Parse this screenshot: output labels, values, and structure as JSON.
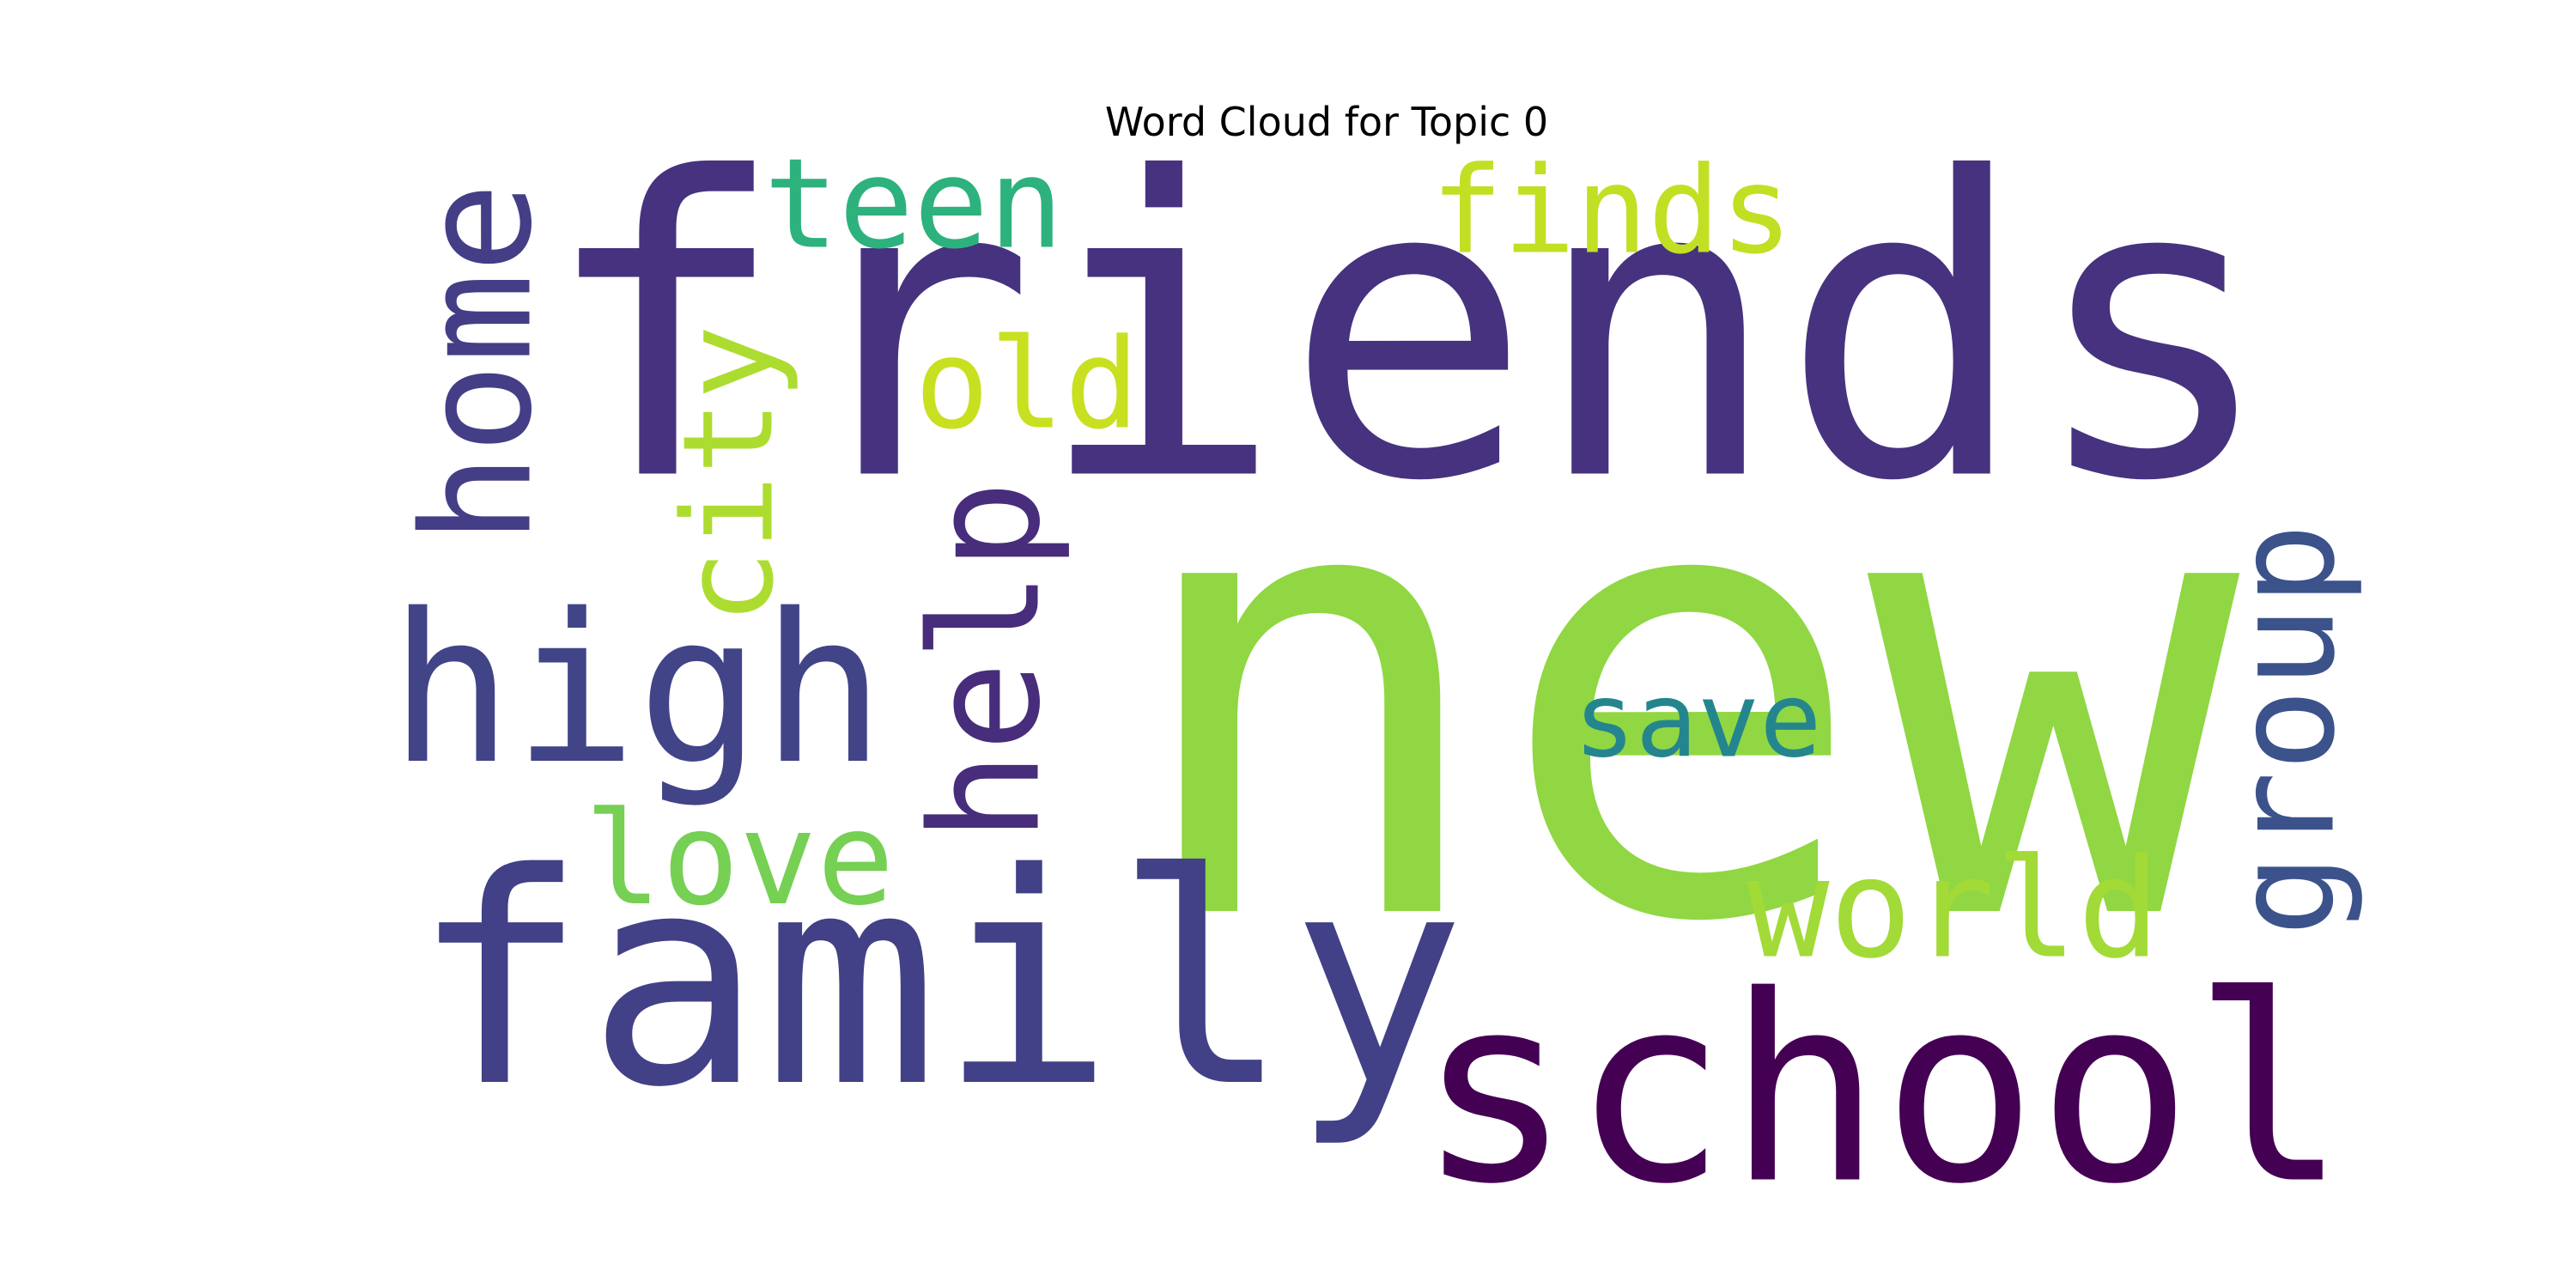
{
  "chart_data": {
    "type": "wordcloud",
    "title": "Word Cloud for Topic 0",
    "words": [
      {
        "text": "new",
        "color": "#90d743"
      },
      {
        "text": "friends",
        "color": "#46327e"
      },
      {
        "text": "family",
        "color": "#424086"
      },
      {
        "text": "school",
        "color": "#440154"
      },
      {
        "text": "high",
        "color": "#414487"
      },
      {
        "text": "help",
        "color": "#472d7b"
      },
      {
        "text": "home",
        "color": "#433e85"
      },
      {
        "text": "teen",
        "color": "#2db27d"
      },
      {
        "text": "finds",
        "color": "#c2df23"
      },
      {
        "text": "old",
        "color": "#c8e020"
      },
      {
        "text": "city",
        "color": "#addc30"
      },
      {
        "text": "save",
        "color": "#25858e"
      },
      {
        "text": "love",
        "color": "#75d054"
      },
      {
        "text": "world",
        "color": "#a2da37"
      },
      {
        "text": "group",
        "color": "#3b528b"
      }
    ]
  }
}
